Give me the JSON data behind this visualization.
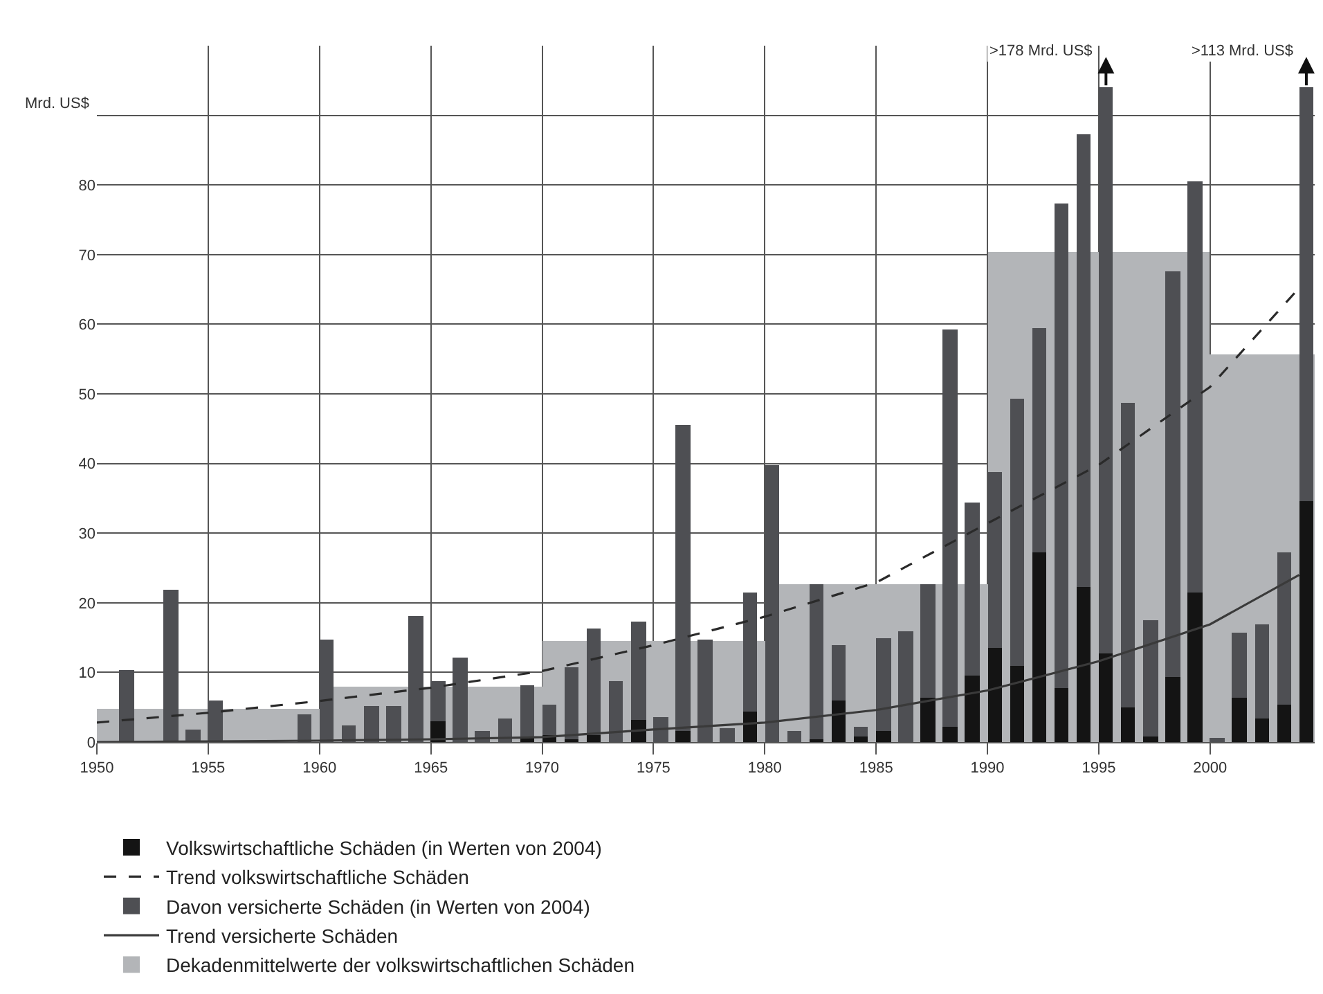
{
  "chart_data": {
    "type": "bar",
    "ylabel": "Mrd. US$",
    "xlim": [
      1950,
      2004.7
    ],
    "ylim": [
      0,
      100
    ],
    "xticks": [
      1950,
      1955,
      1960,
      1965,
      1970,
      1975,
      1980,
      1985,
      1990,
      1995,
      2000
    ],
    "yticks": [
      0,
      10,
      20,
      30,
      40,
      50,
      60,
      70,
      80,
      {
        "value": 90,
        "label": null
      }
    ],
    "grid": true,
    "legend": "bottom",
    "series": [
      {
        "name": "Dekadenmittelwerte der volkswirtschaftlichen Schäden",
        "type": "bar",
        "color": "#b3b5b8",
        "x": [
          1950,
          1960,
          1970,
          1980,
          1990,
          2000
        ],
        "values": [
          4.7,
          7.9,
          14.5,
          22.6,
          70.3,
          55.6
        ]
      },
      {
        "name": "Davon versicherte Schäden (in Werten von 2004)",
        "color": "#4e4f53",
        "x": [
          1951,
          1953,
          1954,
          1955,
          1959,
          1960,
          1961,
          1962,
          1963,
          1964,
          1965,
          1966,
          1967,
          1968,
          1969,
          1970,
          1971,
          1972,
          1973,
          1974,
          1975,
          1976,
          1977,
          1978,
          1979,
          1980,
          1981,
          1982,
          1983,
          1984,
          1985,
          1986,
          1987,
          1988,
          1989,
          1990,
          1991,
          1992,
          1993,
          1994,
          1995,
          1996,
          1997,
          1998,
          1999,
          2000,
          2001,
          2002,
          2003,
          2004
        ],
        "values": [
          10.4,
          21.9,
          1.8,
          6.0,
          4.0,
          14.7,
          2.3,
          5.1,
          5.1,
          18.1,
          8.8,
          12.1,
          1.6,
          3.4,
          8.1,
          5.4,
          10.7,
          16.3,
          8.7,
          17.3,
          3.5,
          45.5,
          14.8,
          2.0,
          21.5,
          39.8,
          1.6,
          22.6,
          14.0,
          2.1,
          15.0,
          16.0,
          22.6,
          59.2,
          34.3,
          38.8,
          49.4,
          59.4,
          77.4,
          87.3,
          94,
          48.7,
          17.4,
          67.6,
          80.6,
          0.5,
          15.7,
          16.9,
          27.3,
          94
        ]
      },
      {
        "name": "Volkswirtschaftliche Schäden (in Werten von 2004)",
        "color": "#141414",
        "x": [
          1965,
          1969,
          1970,
          1971,
          1972,
          1974,
          1976,
          1979,
          1982,
          1983,
          1984,
          1985,
          1987,
          1988,
          1989,
          1990,
          1991,
          1992,
          1993,
          1994,
          1995,
          1996,
          1997,
          1998,
          1999,
          2001,
          2002,
          2003,
          2004
        ],
        "values": [
          3.0,
          0.5,
          1.0,
          0.4,
          1.0,
          3.2,
          1.6,
          4.4,
          0.4,
          6.0,
          0.7,
          1.6,
          6.3,
          2.1,
          9.5,
          13.6,
          10.9,
          27.2,
          7.8,
          22.2,
          12.7,
          4.9,
          0.8,
          9.3,
          21.5,
          6.3,
          3.3,
          5.4,
          34.6
        ]
      },
      {
        "name": "Trend volkswirtschaftliche Schäden",
        "type": "line",
        "line_style": "dashed",
        "color": "#2a2a2a",
        "x": [
          1950,
          1955,
          1960,
          1965,
          1970,
          1975,
          1980,
          1985,
          1990,
          1995,
          2000,
          2004
        ],
        "values": [
          2.8,
          4.2,
          5.9,
          7.8,
          10.2,
          13.9,
          18.0,
          22.9,
          31.4,
          39.8,
          51.0,
          65.2
        ]
      },
      {
        "name": "Trend versicherte Schäden",
        "type": "line",
        "line_style": "solid",
        "color": "#3a3a3a",
        "x": [
          1950,
          1955,
          1960,
          1965,
          1970,
          1975,
          1980,
          1985,
          1990,
          1995,
          2000,
          2004
        ],
        "values": [
          0.0,
          0.1,
          0.2,
          0.4,
          0.7,
          1.8,
          2.8,
          4.6,
          7.4,
          11.6,
          16.9,
          24.0
        ]
      }
    ],
    "annotations": [
      {
        "text": ">178 Mrd. US$",
        "x": 1995,
        "y": 94
      },
      {
        "text": ">113 Mrd. US$",
        "x": 2004,
        "y": 94
      }
    ]
  }
}
